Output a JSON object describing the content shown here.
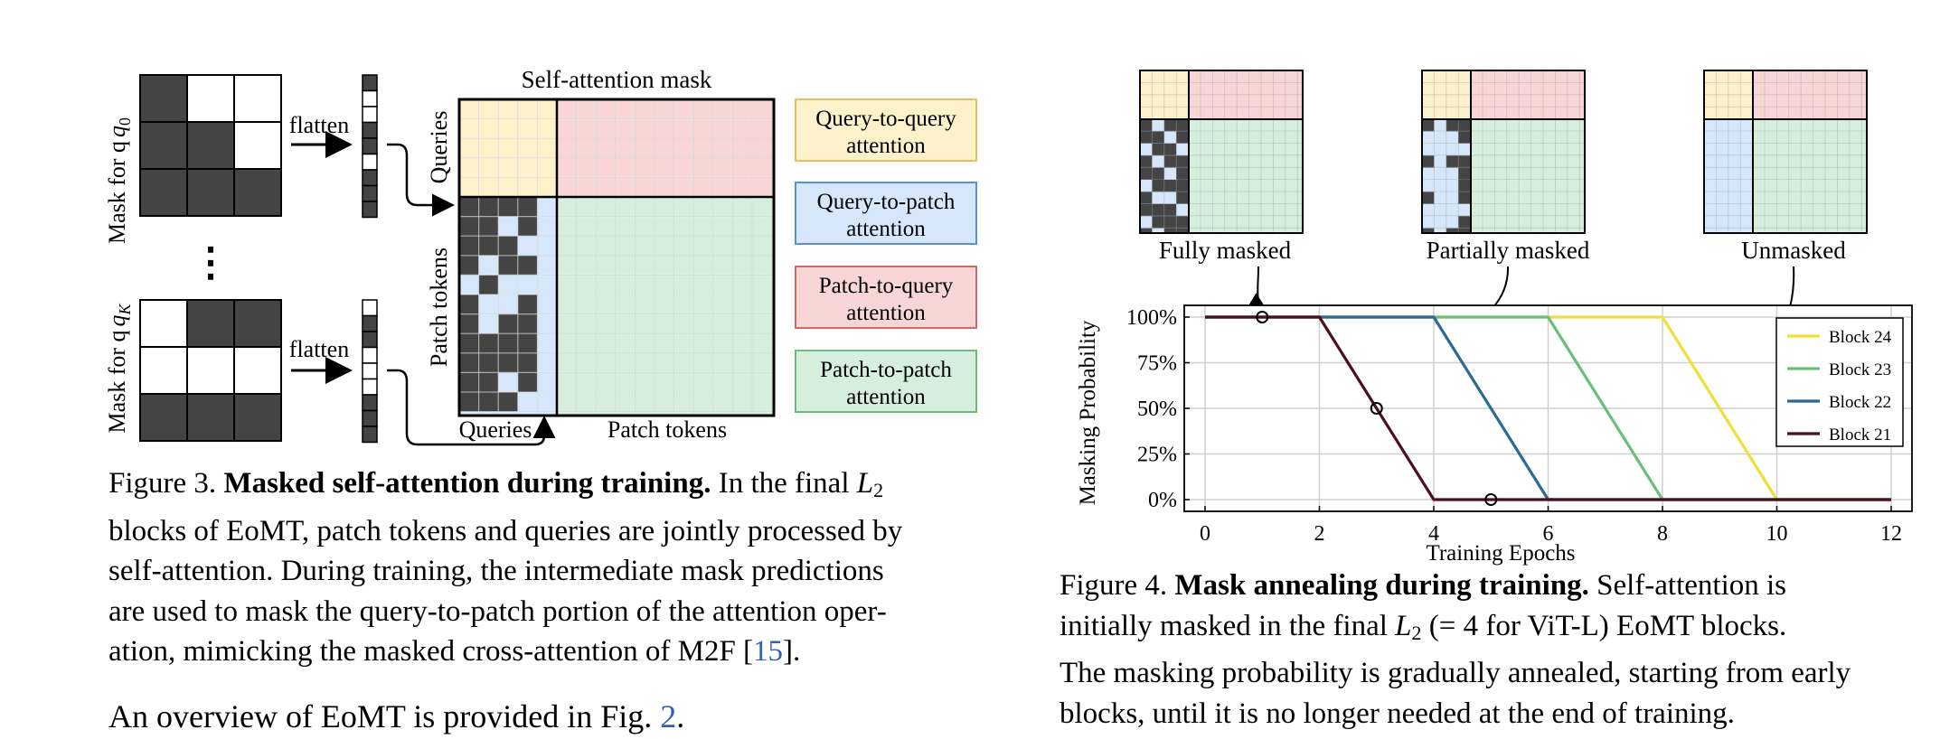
{
  "fig3": {
    "mask_q0_label": "Mask for q",
    "mask_q0_sub": "0",
    "mask_qk_label": "Mask for q",
    "mask_qk_sub": "K",
    "ellipsis": "⋮",
    "flatten_top": "flatten",
    "flatten_bottom": "flatten",
    "mask_title": "Self-attention  mask",
    "queries_row": "Queries",
    "patch_row": "Patch  tokens",
    "queries_col": "Queries",
    "patch_col": "Patch  tokens",
    "legend": [
      {
        "line1": "Query-to-query",
        "line2": "attention",
        "fill": "#fdf1cc",
        "stroke": "#e0c064"
      },
      {
        "line1": "Query-to-patch",
        "line2": "attention",
        "fill": "#d6e6fb",
        "stroke": "#5a8fd8"
      },
      {
        "line1": "Patch-to-query",
        "line2": "attention",
        "fill": "#f9d6d6",
        "stroke": "#d86868"
      },
      {
        "line1": "Patch-to-patch",
        "line2": "attention",
        "fill": "#d6efdd",
        "stroke": "#6cbc80"
      }
    ],
    "mask_q0_grid": [
      [
        1,
        0,
        0
      ],
      [
        1,
        1,
        0
      ],
      [
        1,
        1,
        1
      ]
    ],
    "mask_qk_grid": [
      [
        0,
        1,
        1
      ],
      [
        0,
        0,
        0
      ],
      [
        1,
        1,
        1
      ]
    ],
    "flat_q0": [
      1,
      0,
      0,
      1,
      1,
      0,
      1,
      1,
      1
    ],
    "flat_qk": [
      0,
      1,
      1,
      0,
      0,
      0,
      1,
      1,
      1
    ],
    "caption_num": "Figure 3.",
    "caption_bold": "Masked self-attention during training.",
    "caption_l1_rest": "In the final",
    "caption_math": "L",
    "caption_math_sub": "2",
    "caption_l2": "blocks of EoMT, patch tokens and queries are jointly processed by",
    "caption_l3": "self-attention.  During training, the intermediate mask predictions",
    "caption_l4": "are used to mask the query-to-patch portion of the attention oper-",
    "caption_l5_pre": "ation, mimicking the masked cross-attention of M2F [",
    "caption_l5_cite": "15",
    "caption_l5_post": "]."
  },
  "overview": {
    "pre": "An overview of EoMT is provided in Fig.",
    "cite": "2",
    "post": "."
  },
  "fig4": {
    "thumb_labels": [
      "Fully masked",
      "Partially masked",
      "Unmasked"
    ],
    "ylabel": "Masking Probability",
    "xlabel": "Training Epochs",
    "caption_num": "Figure 4.",
    "caption_bold": "Mask annealing during training.",
    "caption_l1_rest": "Self-attention is",
    "caption_l2_pre": "initially masked in the final",
    "caption_math": "L",
    "caption_math_sub": "2",
    "caption_l2_post": "(= 4 for ViT-L) EoMT blocks.",
    "caption_l3": "The masking probability is gradually annealed, starting from early",
    "caption_l4": "blocks, until it is no longer needed at the end of training."
  },
  "chart_data": {
    "type": "line",
    "xlabel": "Training Epochs",
    "ylabel": "Masking Probability",
    "xlim": [
      0,
      12
    ],
    "ylim": [
      0,
      100
    ],
    "xticks": [
      0,
      2,
      4,
      6,
      8,
      10,
      12
    ],
    "yticks": [
      0,
      25,
      50,
      75,
      100
    ],
    "ytick_labels": [
      "0%",
      "25%",
      "50%",
      "75%",
      "100%"
    ],
    "grid": true,
    "legend_position": "top-right",
    "series": [
      {
        "name": "Block 24",
        "color": "#f2dd3a",
        "x": [
          0,
          8,
          10,
          12
        ],
        "y": [
          100,
          100,
          0,
          0
        ]
      },
      {
        "name": "Block 23",
        "color": "#6cbf7a",
        "x": [
          0,
          6,
          8,
          12
        ],
        "y": [
          100,
          100,
          0,
          0
        ]
      },
      {
        "name": "Block 22",
        "color": "#2b6a94",
        "x": [
          0,
          4,
          6,
          12
        ],
        "y": [
          100,
          100,
          0,
          0
        ]
      },
      {
        "name": "Block 21",
        "color": "#4a0f1c",
        "x": [
          0,
          2,
          4,
          12
        ],
        "y": [
          100,
          100,
          0,
          0
        ]
      }
    ],
    "markers": [
      {
        "x": 1,
        "y": 100
      },
      {
        "x": 3,
        "y": 50
      },
      {
        "x": 5,
        "y": 0
      }
    ]
  }
}
